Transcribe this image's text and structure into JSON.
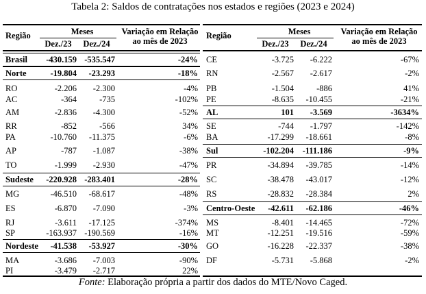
{
  "caption": "Tabela 2: Saldos de contratações nos estados e regiões (2023 e 2024)",
  "headers": {
    "regiao": "Região",
    "meses": "Meses",
    "dez23": "Dez./23",
    "dez24": "Dez./24",
    "variacao_l1": "Variação em Relação",
    "variacao_l2": "ao mês de 2023"
  },
  "left": [
    {
      "name": "Brasil",
      "v23": "-430.159",
      "v24": "-535.547",
      "var": "-24%",
      "bold": true
    },
    {
      "name": "Norte",
      "v23": "-19.804",
      "v24": "-23.293",
      "var": "-18%",
      "bold": true
    },
    {
      "name": "RO",
      "v23": "-2.206",
      "v24": "-2.300",
      "var": "-4%",
      "bold": false
    },
    {
      "name": "AC",
      "v23": "-364",
      "v24": "-735",
      "var": "-102%",
      "bold": false
    },
    {
      "name": "AM",
      "v23": "-2.836",
      "v24": "-4.300",
      "var": "-52%",
      "bold": false
    },
    {
      "name": "RR",
      "v23": "-852",
      "v24": "-566",
      "var": "34%",
      "bold": false
    },
    {
      "name": "PA",
      "v23": "-10.760",
      "v24": "-11.375",
      "var": "-6%",
      "bold": false
    },
    {
      "name": "AP",
      "v23": "-787",
      "v24": "-1.087",
      "var": "-38%",
      "bold": false
    },
    {
      "name": "TO",
      "v23": "-1.999",
      "v24": "-2.930",
      "var": "-47%",
      "bold": false
    },
    {
      "name": "Sudeste",
      "v23": "-220.928",
      "v24": "-283.401",
      "var": "-28%",
      "bold": true
    },
    {
      "name": "MG",
      "v23": "-46.510",
      "v24": "-68.617",
      "var": "-48%",
      "bold": false
    },
    {
      "name": "ES",
      "v23": "-6.870",
      "v24": "-7.090",
      "var": "-3%",
      "bold": false
    },
    {
      "name": "RJ",
      "v23": "-3.611",
      "v24": "-17.125",
      "var": "-374%",
      "bold": false
    },
    {
      "name": "SP",
      "v23": "-163.937",
      "v24": "-190.569",
      "var": "-16%",
      "bold": false
    },
    {
      "name": "Nordeste",
      "v23": "-41.538",
      "v24": "-53.927",
      "var": "-30%",
      "bold": true
    },
    {
      "name": "MA",
      "v23": "-3.686",
      "v24": "-7.003",
      "var": "-90%",
      "bold": false
    },
    {
      "name": "PI",
      "v23": "-3.479",
      "v24": "-2.717",
      "var": "22%",
      "bold": false
    }
  ],
  "right": [
    {
      "name": "CE",
      "v23": "-3.725",
      "v24": "-6.222",
      "var": "-67%",
      "bold": false
    },
    {
      "name": "RN",
      "v23": "-2.567",
      "v24": "-2.617",
      "var": "-2%",
      "bold": false
    },
    {
      "name": "PB",
      "v23": "-1.504",
      "v24": "-886",
      "var": "41%",
      "bold": false
    },
    {
      "name": "PE",
      "v23": "-8.635",
      "v24": "-10.455",
      "var": "-21%",
      "bold": false
    },
    {
      "name": "AL",
      "v23": "101",
      "v24": "-3.569",
      "var": "-3634%",
      "bold": true
    },
    {
      "name": "SE",
      "v23": "-744",
      "v24": "-1.797",
      "var": "-142%",
      "bold": false
    },
    {
      "name": "BA",
      "v23": "-17.299",
      "v24": "-18.661",
      "var": "-8%",
      "bold": false
    },
    {
      "name": "Sul",
      "v23": "-102.204",
      "v24": "-111.186",
      "var": "-9%",
      "bold": true
    },
    {
      "name": "PR",
      "v23": "-34.894",
      "v24": "-39.785",
      "var": "-14%",
      "bold": false
    },
    {
      "name": "SC",
      "v23": "-38.478",
      "v24": "-43.017",
      "var": "-12%",
      "bold": false
    },
    {
      "name": "RS",
      "v23": "-28.832",
      "v24": "-28.384",
      "var": "2%",
      "bold": false
    },
    {
      "name": "Centro-Oeste",
      "v23": "-42.611",
      "v24": "-62.186",
      "var": "-46%",
      "bold": true
    },
    {
      "name": "MS",
      "v23": "-8.401",
      "v24": "-14.465",
      "var": "-72%",
      "bold": false
    },
    {
      "name": "MT",
      "v23": "-12.251",
      "v24": "-19.516",
      "var": "-59%",
      "bold": false
    },
    {
      "name": "GO",
      "v23": "-16.228",
      "v24": "-22.337",
      "var": "-38%",
      "bold": false
    },
    {
      "name": "DF",
      "v23": "-5.731",
      "v24": "-5.868",
      "var": "-2%",
      "bold": false
    }
  ],
  "fonte_label": "Fonte:",
  "fonte_text": " Elaboração própria a partir dos dados do MTE/Novo Caged."
}
